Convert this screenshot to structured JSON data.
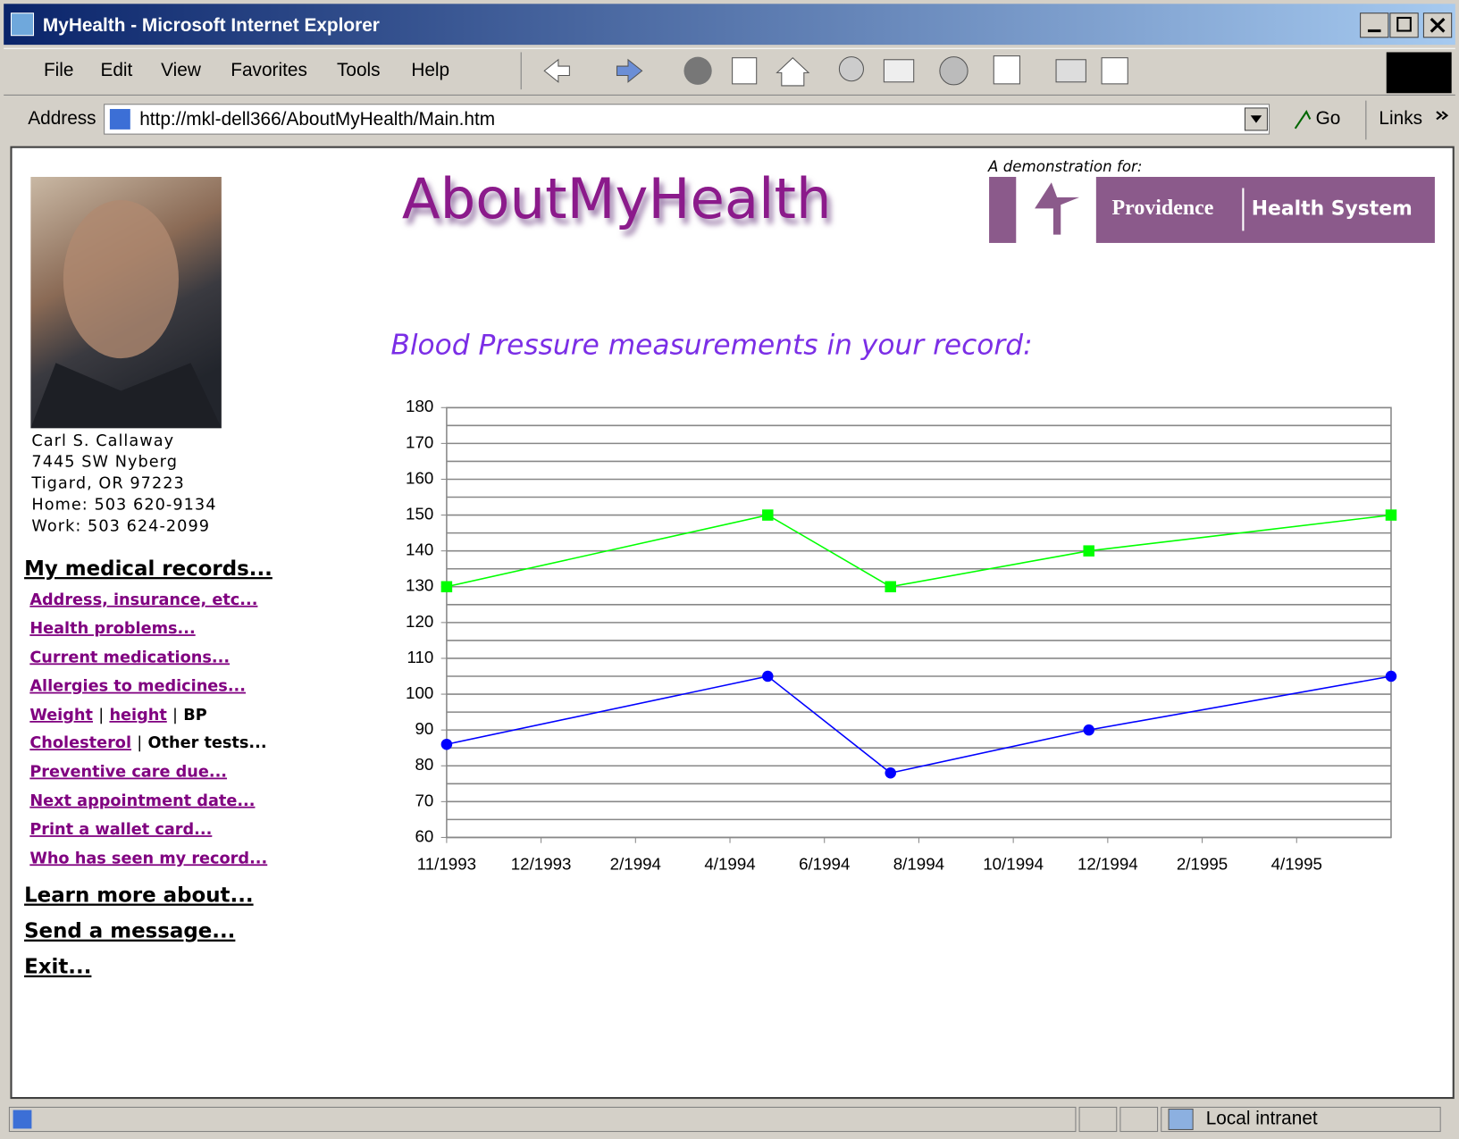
{
  "window": {
    "title": "MyHealth - Microsoft Internet Explorer"
  },
  "menu": [
    "File",
    "Edit",
    "View",
    "Favorites",
    "Tools",
    "Help"
  ],
  "address_bar": {
    "label": "Address",
    "url": "http://mkl-dell366/AboutMyHealth/Main.htm",
    "go": "Go",
    "links": "Links"
  },
  "status_bar": {
    "zone": "Local intranet"
  },
  "header": {
    "logo": "AboutMyHealth",
    "demo_note": "A demonstration for:",
    "sponsor": [
      "Providence",
      "Health System"
    ]
  },
  "patient": [
    "Carl S. Callaway",
    "7445 SW Nyberg",
    "Tigard, OR 97223",
    "Home: 503 620-9134",
    "Work: 503 624-2099"
  ],
  "nav": {
    "heading": "My medical records...",
    "links": [
      "Address, insurance, etc...",
      "Health problems...",
      "Current medications...",
      "Allergies to medicines..."
    ],
    "separator": "|",
    "row1": [
      "Weight",
      "height",
      "BP"
    ],
    "row2": [
      "Cholesterol",
      "Other tests..."
    ],
    "links2": [
      "Preventive care due...",
      "Next appointment date...",
      "Print a wallet card...",
      "Who has seen my record..."
    ],
    "bottom": [
      "Learn more about...",
      "Send a message...",
      "Exit..."
    ]
  },
  "chart_data": {
    "type": "line",
    "title": "Blood Pressure measurements in your record:",
    "xlim": [
      0,
      10
    ],
    "xticks": [
      {
        "value": 0,
        "label": "11/1993"
      },
      {
        "value": 1,
        "label": "12/1993"
      },
      {
        "value": 2,
        "label": "2/1994"
      },
      {
        "value": 3,
        "label": "4/1994"
      },
      {
        "value": 4,
        "label": "6/1994"
      },
      {
        "value": 5,
        "label": "8/1994"
      },
      {
        "value": 6,
        "label": "10/1994"
      },
      {
        "value": 7,
        "label": "12/1994"
      },
      {
        "value": 8,
        "label": "2/1995"
      },
      {
        "value": 9,
        "label": "4/1995"
      }
    ],
    "ylim": [
      60,
      180
    ],
    "yticks": [
      60,
      70,
      80,
      90,
      100,
      110,
      120,
      130,
      140,
      150,
      160,
      170,
      180
    ],
    "grid": true,
    "minor_grid": true,
    "x": [
      0,
      3.4,
      4.7,
      6.8,
      10
    ],
    "series": [
      {
        "color": "#00ff00",
        "marker": "square",
        "values": [
          130,
          150,
          130,
          140,
          150
        ]
      },
      {
        "color": "#0000ff",
        "marker": "circle",
        "values": [
          86,
          105,
          78,
          90,
          105
        ]
      }
    ]
  }
}
